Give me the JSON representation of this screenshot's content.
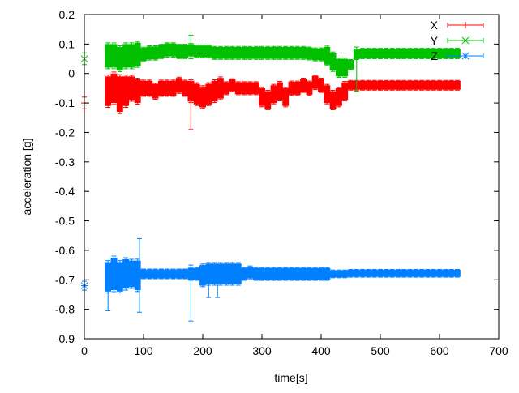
{
  "chart_data": {
    "type": "scatter",
    "title": "",
    "xlabel": "time[s]",
    "ylabel": "acceleration [g]",
    "xlim": [
      0,
      700
    ],
    "ylim": [
      -0.9,
      0.2
    ],
    "xticks": [
      "0",
      "100",
      "200",
      "300",
      "400",
      "500",
      "600",
      "700"
    ],
    "yticks": [
      "0.2",
      "0.1",
      "0",
      "-0.1",
      "-0.2",
      "-0.3",
      "-0.4",
      "-0.5",
      "-0.6",
      "-0.7",
      "-0.8",
      "-0.9"
    ],
    "grid": false,
    "legend_position": "top-right",
    "error_bars": true,
    "t_start": 40,
    "t_step": 10,
    "series": [
      {
        "name": "X",
        "color": "#ff0000",
        "marker": "plus",
        "first_point": {
          "t": 0,
          "y": -0.1,
          "err": 0.02
        },
        "y": [
          -0.06,
          -0.05,
          -0.07,
          -0.06,
          -0.05,
          -0.06,
          -0.05,
          -0.05,
          -0.06,
          -0.05,
          -0.05,
          -0.05,
          -0.04,
          -0.05,
          -0.06,
          -0.07,
          -0.08,
          -0.07,
          -0.06,
          -0.05,
          -0.05,
          -0.04,
          -0.05,
          -0.05,
          -0.05,
          -0.05,
          -0.08,
          -0.09,
          -0.07,
          -0.06,
          -0.08,
          -0.05,
          -0.05,
          -0.04,
          -0.05,
          -0.03,
          -0.04,
          -0.07,
          -0.09,
          -0.08,
          -0.06,
          -0.04,
          -0.04,
          -0.04,
          -0.04,
          -0.04,
          -0.04,
          -0.04,
          -0.04,
          -0.04,
          -0.04,
          -0.04,
          -0.04,
          -0.04,
          -0.04,
          -0.04,
          -0.04,
          -0.04,
          -0.04,
          -0.04
        ],
        "err": [
          0.05,
          0.05,
          0.06,
          0.05,
          0.04,
          0.04,
          0.025,
          0.025,
          0.025,
          0.025,
          0.025,
          0.025,
          0.025,
          0.025,
          0.035,
          0.035,
          0.035,
          0.035,
          0.035,
          0.035,
          0.02,
          0.02,
          0.02,
          0.02,
          0.02,
          0.02,
          0.03,
          0.03,
          0.03,
          0.03,
          0.03,
          0.022,
          0.022,
          0.022,
          0.022,
          0.022,
          0.022,
          0.03,
          0.03,
          0.03,
          0.03,
          0.015,
          0.015,
          0.015,
          0.015,
          0.015,
          0.015,
          0.015,
          0.015,
          0.015,
          0.015,
          0.015,
          0.015,
          0.015,
          0.015,
          0.015,
          0.015,
          0.015,
          0.015,
          0.015
        ],
        "outliers": [
          {
            "t": 180,
            "y": -0.11,
            "err": 0.08
          }
        ]
      },
      {
        "name": "Y",
        "color": "#00c000",
        "marker": "cross",
        "first_point": {
          "t": 0,
          "y": 0.05,
          "err": 0.02
        },
        "y": [
          0.06,
          0.06,
          0.05,
          0.06,
          0.06,
          0.065,
          0.065,
          0.07,
          0.07,
          0.075,
          0.08,
          0.08,
          0.075,
          0.075,
          0.08,
          0.075,
          0.075,
          0.075,
          0.07,
          0.07,
          0.07,
          0.07,
          0.07,
          0.07,
          0.07,
          0.07,
          0.07,
          0.07,
          0.07,
          0.07,
          0.07,
          0.07,
          0.07,
          0.07,
          0.068,
          0.065,
          0.065,
          0.06,
          0.04,
          0.02,
          0.02,
          0.03,
          0.065,
          0.068,
          0.068,
          0.068,
          0.068,
          0.068,
          0.068,
          0.068,
          0.068,
          0.068,
          0.068,
          0.068,
          0.068,
          0.068,
          0.068,
          0.068,
          0.068,
          0.068
        ],
        "err": [
          0.04,
          0.04,
          0.04,
          0.04,
          0.04,
          0.04,
          0.022,
          0.022,
          0.022,
          0.022,
          0.022,
          0.022,
          0.022,
          0.022,
          0.02,
          0.02,
          0.02,
          0.02,
          0.02,
          0.02,
          0.02,
          0.02,
          0.02,
          0.02,
          0.02,
          0.02,
          0.02,
          0.02,
          0.02,
          0.02,
          0.02,
          0.02,
          0.02,
          0.02,
          0.02,
          0.02,
          0.02,
          0.03,
          0.03,
          0.03,
          0.03,
          0.016,
          0.016,
          0.016,
          0.016,
          0.016,
          0.016,
          0.016,
          0.016,
          0.016,
          0.016,
          0.016,
          0.016,
          0.016,
          0.016,
          0.016,
          0.016,
          0.016,
          0.016,
          0.016
        ],
        "outliers": [
          {
            "t": 460,
            "y": 0.015,
            "err": 0.075
          },
          {
            "t": 180,
            "y": 0.09,
            "err": 0.04
          }
        ]
      },
      {
        "name": "Z",
        "color": "#0080ff",
        "marker": "star",
        "first_point": {
          "t": 0,
          "y": -0.72,
          "err": 0.015
        },
        "y": [
          -0.69,
          -0.68,
          -0.69,
          -0.68,
          -0.68,
          -0.685,
          -0.68,
          -0.68,
          -0.68,
          -0.68,
          -0.68,
          -0.68,
          -0.68,
          -0.68,
          -0.68,
          -0.68,
          -0.685,
          -0.68,
          -0.68,
          -0.68,
          -0.68,
          -0.68,
          -0.68,
          -0.68,
          -0.675,
          -0.68,
          -0.68,
          -0.68,
          -0.68,
          -0.68,
          -0.68,
          -0.68,
          -0.68,
          -0.68,
          -0.68,
          -0.68,
          -0.68,
          -0.68,
          -0.68,
          -0.68,
          -0.68,
          -0.678,
          -0.678,
          -0.678,
          -0.678,
          -0.678,
          -0.678,
          -0.678,
          -0.678,
          -0.678,
          -0.678,
          -0.678,
          -0.678,
          -0.678,
          -0.678,
          -0.678,
          -0.678,
          -0.678,
          -0.678,
          -0.678
        ],
        "err": [
          0.05,
          0.055,
          0.05,
          0.05,
          0.045,
          0.05,
          0.015,
          0.015,
          0.015,
          0.015,
          0.015,
          0.015,
          0.015,
          0.015,
          0.02,
          0.02,
          0.035,
          0.035,
          0.035,
          0.035,
          0.035,
          0.035,
          0.035,
          0.02,
          0.02,
          0.02,
          0.02,
          0.02,
          0.02,
          0.02,
          0.02,
          0.02,
          0.02,
          0.02,
          0.02,
          0.02,
          0.02,
          0.02,
          0.012,
          0.012,
          0.012,
          0.012,
          0.012,
          0.012,
          0.012,
          0.012,
          0.012,
          0.012,
          0.012,
          0.012,
          0.012,
          0.012,
          0.012,
          0.012,
          0.012,
          0.012,
          0.012,
          0.012,
          0.012,
          0.012
        ],
        "outliers": [
          {
            "t": 93,
            "y": -0.685,
            "err": 0.125
          },
          {
            "t": 180,
            "y": -0.745,
            "err": 0.095
          },
          {
            "t": 40,
            "y": -0.74,
            "err": 0.065
          },
          {
            "t": 210,
            "y": -0.71,
            "err": 0.05
          },
          {
            "t": 225,
            "y": -0.72,
            "err": 0.04
          }
        ]
      }
    ]
  }
}
